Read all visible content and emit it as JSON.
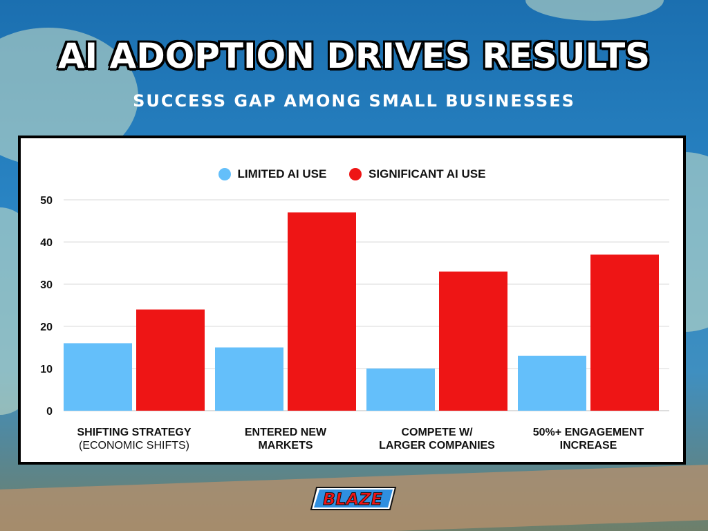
{
  "title": "AI ADOPTION DRIVES RESULTS",
  "subtitle": "SUCCESS GAP AMONG SMALL BUSINESSES",
  "brand": "BLAZE",
  "colors": {
    "limited": "#64bffa",
    "significant": "#ee1515",
    "grid": "#d9d9d9"
  },
  "chart_data": {
    "type": "bar",
    "title": "",
    "xlabel": "",
    "ylabel": "",
    "ylim": [
      0,
      50
    ],
    "yticks": [
      0,
      10,
      20,
      30,
      40,
      50
    ],
    "grid": true,
    "legend_position": "top",
    "categories": [
      [
        "SHIFTING STRATEGY",
        "(ECONOMIC SHIFTS)"
      ],
      [
        "ENTERED NEW",
        "MARKETS"
      ],
      [
        "COMPETE W/",
        "LARGER COMPANIES"
      ],
      [
        "50%+ ENGAGEMENT",
        "INCREASE"
      ]
    ],
    "series": [
      {
        "name": "LIMITED AI USE",
        "values": [
          16,
          15,
          10,
          13
        ]
      },
      {
        "name": "SIGNIFICANT AI USE",
        "values": [
          24,
          47,
          33,
          37
        ]
      }
    ]
  }
}
